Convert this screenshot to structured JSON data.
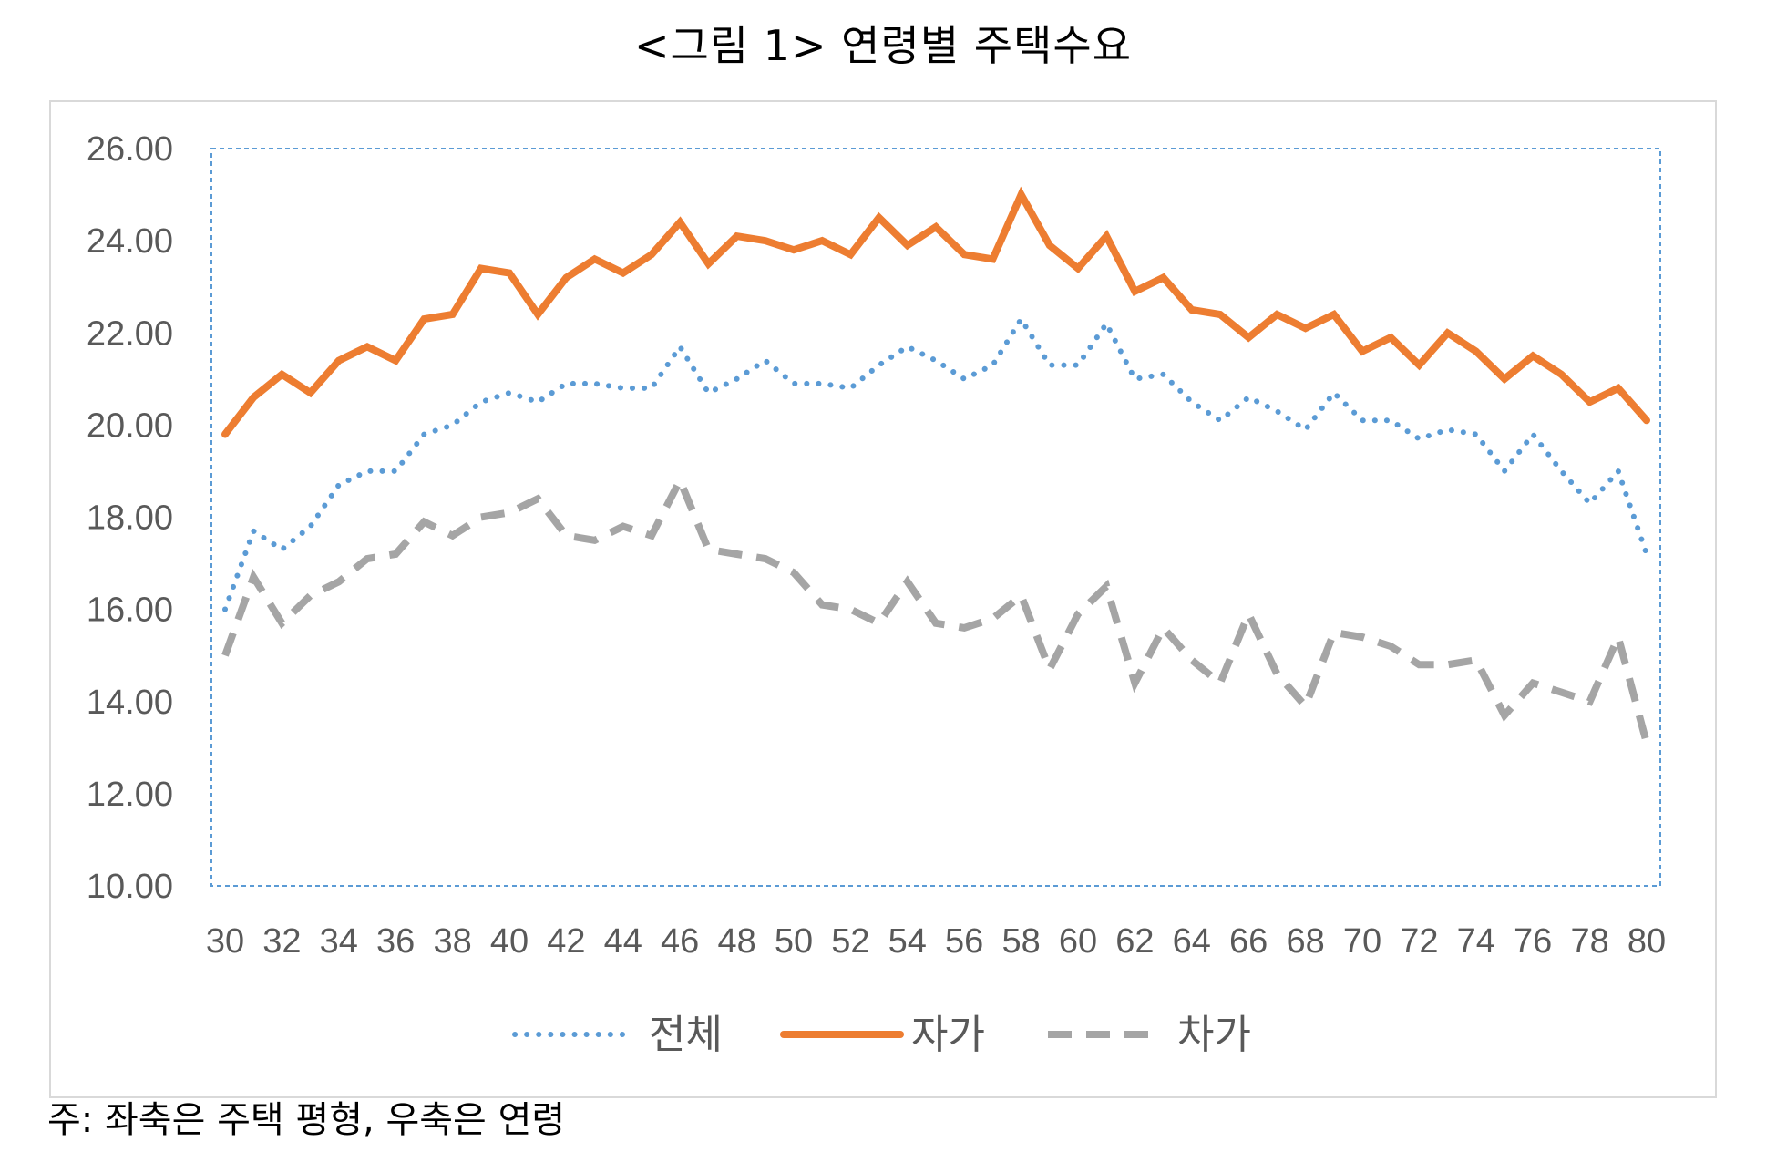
{
  "title": "<그림 1> 연령별 주택수요",
  "note": "주: 좌축은 주택 평형, 우축은 연령",
  "colors": {
    "전체": "#5B9BD5",
    "자가": "#ED7D31",
    "차가": "#A5A5A5",
    "axis": "#595959"
  },
  "chart_data": {
    "type": "line",
    "title": "<그림 1> 연령별 주택수요",
    "xlabel": "",
    "ylabel": "",
    "ylim": [
      10,
      26
    ],
    "y_ticks": [
      "10.00",
      "12.00",
      "14.00",
      "16.00",
      "18.00",
      "20.00",
      "22.00",
      "24.00",
      "26.00"
    ],
    "x": [
      30,
      31,
      32,
      33,
      34,
      35,
      36,
      37,
      38,
      39,
      40,
      41,
      42,
      43,
      44,
      45,
      46,
      47,
      48,
      49,
      50,
      51,
      52,
      53,
      54,
      55,
      56,
      57,
      58,
      59,
      60,
      61,
      62,
      63,
      64,
      65,
      66,
      67,
      68,
      69,
      70,
      71,
      72,
      73,
      74,
      75,
      76,
      77,
      78,
      79,
      80
    ],
    "x_tick_labels": [
      "30",
      "32",
      "34",
      "36",
      "38",
      "40",
      "42",
      "44",
      "46",
      "48",
      "50",
      "52",
      "54",
      "56",
      "58",
      "60",
      "62",
      "64",
      "66",
      "68",
      "70",
      "72",
      "74",
      "76",
      "78",
      "80"
    ],
    "legend_position": "bottom",
    "series": [
      {
        "name": "전체",
        "style": "dotted",
        "values": [
          16.0,
          17.7,
          17.3,
          17.8,
          18.7,
          19.0,
          19.0,
          19.8,
          20.0,
          20.5,
          20.7,
          20.5,
          20.9,
          20.9,
          20.8,
          20.8,
          21.7,
          20.7,
          21.0,
          21.4,
          20.9,
          20.9,
          20.8,
          21.3,
          21.7,
          21.4,
          21.0,
          21.3,
          22.3,
          21.3,
          21.3,
          22.2,
          21.0,
          21.1,
          20.5,
          20.1,
          20.6,
          20.3,
          19.9,
          20.7,
          20.1,
          20.1,
          19.7,
          19.9,
          19.8,
          19.0,
          19.8,
          19.0,
          18.3,
          19.0,
          17.2
        ]
      },
      {
        "name": "자가",
        "style": "solid",
        "values": [
          19.8,
          20.6,
          21.1,
          20.7,
          21.4,
          21.7,
          21.4,
          22.3,
          22.4,
          23.4,
          23.3,
          22.4,
          23.2,
          23.6,
          23.3,
          23.7,
          24.4,
          23.5,
          24.1,
          24.0,
          23.8,
          24.0,
          23.7,
          24.5,
          23.9,
          24.3,
          23.7,
          23.6,
          25.0,
          23.9,
          23.4,
          24.1,
          22.9,
          23.2,
          22.5,
          22.4,
          21.9,
          22.4,
          22.1,
          22.4,
          21.6,
          21.9,
          21.3,
          22.0,
          21.6,
          21.0,
          21.5,
          21.1,
          20.5,
          20.8,
          20.1
        ]
      },
      {
        "name": "차가",
        "style": "dashed",
        "values": [
          15.0,
          16.7,
          15.7,
          16.3,
          16.6,
          17.1,
          17.2,
          17.9,
          17.6,
          18.0,
          18.1,
          18.4,
          17.6,
          17.5,
          17.8,
          17.6,
          18.8,
          17.3,
          17.2,
          17.1,
          16.8,
          16.1,
          16.0,
          15.7,
          16.6,
          15.7,
          15.6,
          15.8,
          16.3,
          14.7,
          15.9,
          16.5,
          14.4,
          15.6,
          14.9,
          14.4,
          15.9,
          14.6,
          13.9,
          15.5,
          15.4,
          15.2,
          14.8,
          14.8,
          14.9,
          13.7,
          14.4,
          14.2,
          14.0,
          15.4,
          13.1
        ]
      }
    ]
  }
}
